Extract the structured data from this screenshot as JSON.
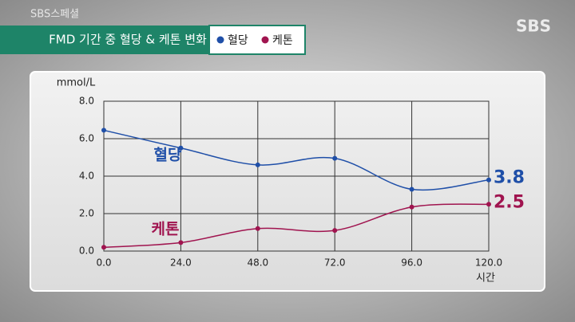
{
  "overlay": {
    "program": "SBS스페셜",
    "channel": "SBS"
  },
  "chart_data": {
    "type": "line",
    "title": "FMD 기간 중 혈당 & 케톤 변화",
    "x": [
      0,
      24,
      48,
      72,
      96,
      120
    ],
    "series": [
      {
        "name": "혈당",
        "color": "#1f4fa8",
        "values": [
          6.45,
          5.5,
          4.6,
          4.95,
          3.3,
          3.8
        ]
      },
      {
        "name": "케톤",
        "color": "#a0144f",
        "values": [
          0.2,
          0.45,
          1.2,
          1.1,
          2.35,
          2.5
        ]
      }
    ],
    "xlim": [
      0,
      120
    ],
    "xticks": [
      {
        "value": 0,
        "label": "0.0"
      },
      {
        "value": 24,
        "label": "24.0"
      },
      {
        "value": 48,
        "label": "48.0"
      },
      {
        "value": 72,
        "label": "72.0"
      },
      {
        "value": 96,
        "label": "96.0"
      },
      {
        "value": 120,
        "label": "120.0"
      }
    ],
    "ylim": [
      0,
      8
    ],
    "yticks": [
      {
        "value": 0,
        "label": "0.0"
      },
      {
        "value": 2,
        "label": "2.0"
      },
      {
        "value": 4,
        "label": "4.0"
      },
      {
        "value": 6,
        "label": "6.0"
      },
      {
        "value": 8,
        "label": "8.0"
      }
    ],
    "xlabel": "시간",
    "ylabel": "mmol/L",
    "grid": true
  }
}
